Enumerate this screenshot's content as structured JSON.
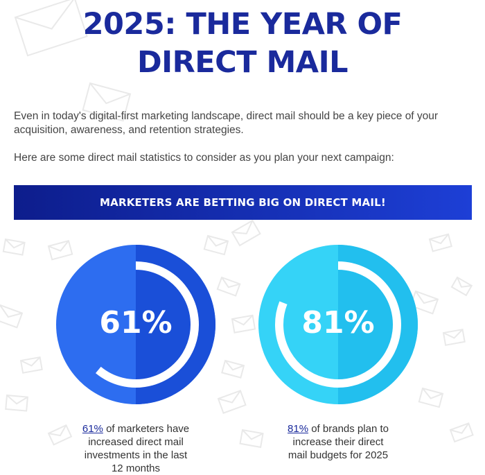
{
  "title_line1": "2025: THE YEAR OF",
  "title_line2": "DIRECT MAIL",
  "intro": "Even in today's digital-first marketing landscape, direct mail should be a key piece of your acquisition, awareness, and retention strategies.",
  "lead": "Here are some direct mail statistics to consider as you plan your next campaign:",
  "banner": "MARKETERS ARE BETTING BIG ON DIRECT MAIL!",
  "stats": [
    {
      "value": "61%",
      "fraction": 0.61,
      "color": "#2d6df0",
      "link": "61%",
      "caption_line1": " of marketers have",
      "caption_line2": "increased direct mail",
      "caption_line3": "investments in the last",
      "caption_line4": "12 months"
    },
    {
      "value": "81%",
      "fraction": 0.81,
      "color": "#2ec8f2",
      "link": "81%",
      "caption_line1": " of brands plan to",
      "caption_line2": "increase their direct",
      "caption_line3": "mail budgets for 2025"
    }
  ],
  "colors": {
    "title": "#1a2a9c",
    "banner_start": "#0d1d8c",
    "banner_end": "#1d3fd6"
  }
}
